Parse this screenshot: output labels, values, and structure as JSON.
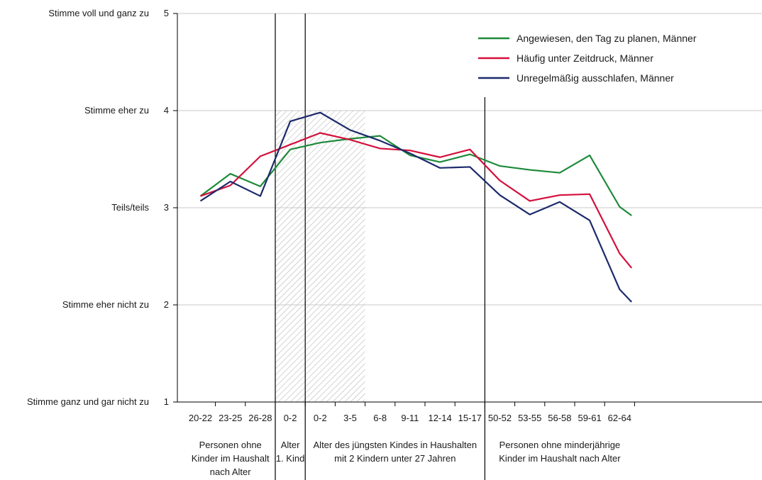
{
  "chart_data": {
    "type": "line",
    "categories": [
      "20-22",
      "23-25",
      "26-28",
      "0-2",
      "0-2",
      "3-5",
      "6-8",
      "9-11",
      "12-14",
      "15-17",
      "50-52",
      "53-55",
      "56-58",
      "59-61",
      "62-64"
    ],
    "ylim": [
      1,
      5
    ],
    "y_ticks": [
      1,
      2,
      3,
      4,
      5
    ],
    "y_tick_labels": [
      "Stimme ganz und gar nicht zu",
      "Stimme eher nicht zu",
      "Teils/teils",
      "Stimme eher zu",
      "Stimme voll und ganz zu"
    ],
    "grid": true,
    "legend_position": "top-right",
    "groups": [
      {
        "label": "Personen ohne\nKinder im Haushalt\nnach Alter",
        "from": 0,
        "to": 2
      },
      {
        "label": "Alter\n1. Kind",
        "from": 3,
        "to": 3
      },
      {
        "label": "Alter des jüngsten Kindes in Haushalten\nmit 2 Kindern unter 27 Jahren",
        "from": 4,
        "to": 9
      },
      {
        "label": "Personen ohne minderjährige\nKinder im Haushalt nach Alter",
        "from": 10,
        "to": 14
      }
    ],
    "shaded_range": [
      3,
      5
    ],
    "series": [
      {
        "name": "Angewiesen, den Tag zu planen, Männer",
        "color": "#1e8a3a",
        "x": [
          0,
          1,
          2,
          3,
          4,
          5,
          6,
          7,
          8,
          9,
          10,
          11,
          12,
          13,
          14,
          14.4
        ],
        "values": [
          3.12,
          3.35,
          3.22,
          3.6,
          3.67,
          3.71,
          3.74,
          3.54,
          3.47,
          3.55,
          3.43,
          3.39,
          3.36,
          3.54,
          3.01,
          2.92
        ]
      },
      {
        "name": "Häufig unter Zeitdruck, Männer",
        "color": "#d4103c",
        "x": [
          0,
          1,
          2,
          3,
          4,
          5,
          6,
          7,
          8,
          9,
          10,
          11,
          12,
          13,
          14,
          14.4
        ],
        "values": [
          3.12,
          3.23,
          3.53,
          3.65,
          3.77,
          3.7,
          3.61,
          3.59,
          3.52,
          3.6,
          3.28,
          3.07,
          3.13,
          3.14,
          2.53,
          2.38
        ]
      },
      {
        "name": "Unregelmäßig ausschlafen, Männer",
        "color": "#1c2a6b",
        "x": [
          0,
          1,
          2,
          3,
          4,
          5,
          6,
          7,
          8,
          9,
          10,
          11,
          12,
          13,
          14,
          14.4
        ],
        "values": [
          3.07,
          3.27,
          3.12,
          3.89,
          3.98,
          3.8,
          3.69,
          3.56,
          3.41,
          3.42,
          3.13,
          2.93,
          3.06,
          2.87,
          2.16,
          2.03
        ]
      }
    ]
  }
}
